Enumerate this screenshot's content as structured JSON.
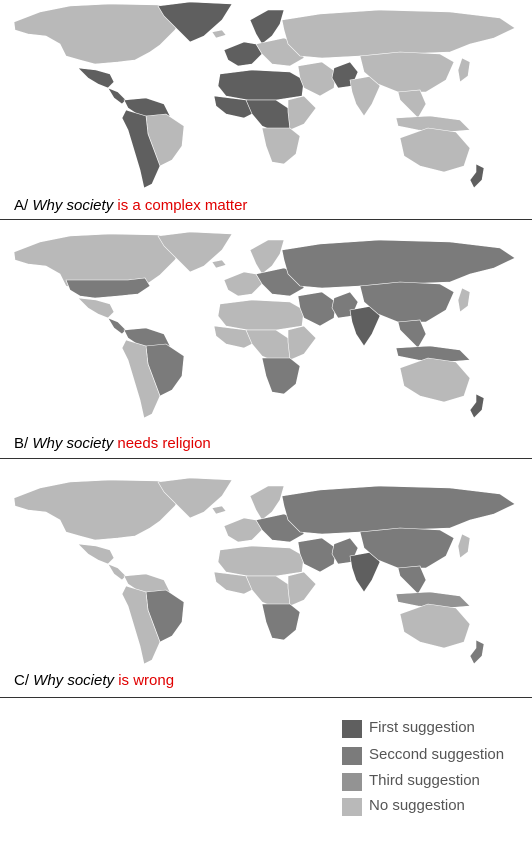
{
  "colors": {
    "first": "#5f5f5f",
    "second": "#7b7b7b",
    "third": "#939393",
    "none": "#b9b9b9"
  },
  "maps": [
    {
      "prefix": "A/ ",
      "query": "Why society",
      "completion": " is a complex matter",
      "regions": {
        "north_america": "none",
        "greenland": "first",
        "mexico": "first",
        "central_america": "first",
        "south_america_north": "first",
        "south_america_west": "first",
        "brazil": "none",
        "iceland": "none",
        "scandinavia": "first",
        "western_europe": "first",
        "eastern_europe": "none",
        "russia": "none",
        "north_africa": "first",
        "west_africa": "first",
        "central_africa": "first",
        "east_africa": "none",
        "southern_africa": "none",
        "middle_east": "none",
        "pakistan": "first",
        "india": "none",
        "china": "none",
        "southeast_asia": "none",
        "japan": "none",
        "indonesia": "none",
        "australia": "none",
        "new_zealand": "first"
      }
    },
    {
      "prefix": "B/ ",
      "query": "Why society",
      "completion": " needs religion",
      "regions": {
        "north_america": "none",
        "usa": "second",
        "greenland": "none",
        "mexico": "none",
        "central_america": "second",
        "south_america_north": "second",
        "south_america_west": "none",
        "brazil": "second",
        "iceland": "none",
        "scandinavia": "none",
        "western_europe": "none",
        "eastern_europe": "second",
        "russia": "second",
        "north_africa": "none",
        "west_africa": "none",
        "central_africa": "none",
        "east_africa": "none",
        "southern_africa": "second",
        "middle_east": "second",
        "pakistan": "second",
        "india": "first",
        "china": "second",
        "southeast_asia": "second",
        "japan": "none",
        "indonesia": "second",
        "australia": "none",
        "new_zealand": "first"
      }
    },
    {
      "prefix": "C/ ",
      "query": "Why society",
      "completion": " is wrong",
      "regions": {
        "north_america": "none",
        "greenland": "none",
        "mexico": "none",
        "central_america": "none",
        "south_america_north": "none",
        "south_america_west": "none",
        "brazil": "second",
        "iceland": "none",
        "scandinavia": "none",
        "western_europe": "none",
        "eastern_europe": "second",
        "russia": "second",
        "north_africa": "none",
        "west_africa": "none",
        "central_africa": "none",
        "east_africa": "none",
        "southern_africa": "second",
        "middle_east": "second",
        "pakistan": "second",
        "india": "first",
        "china": "second",
        "southeast_asia": "second",
        "japan": "none",
        "indonesia": "third",
        "australia": "none",
        "new_zealand": "second"
      }
    }
  ],
  "legend": [
    {
      "label": "First suggestion",
      "level": "first"
    },
    {
      "label": "Seccond suggestion",
      "level": "second"
    },
    {
      "label": "Third suggestion",
      "level": "third"
    },
    {
      "label": "No suggestion",
      "level": "none"
    }
  ]
}
